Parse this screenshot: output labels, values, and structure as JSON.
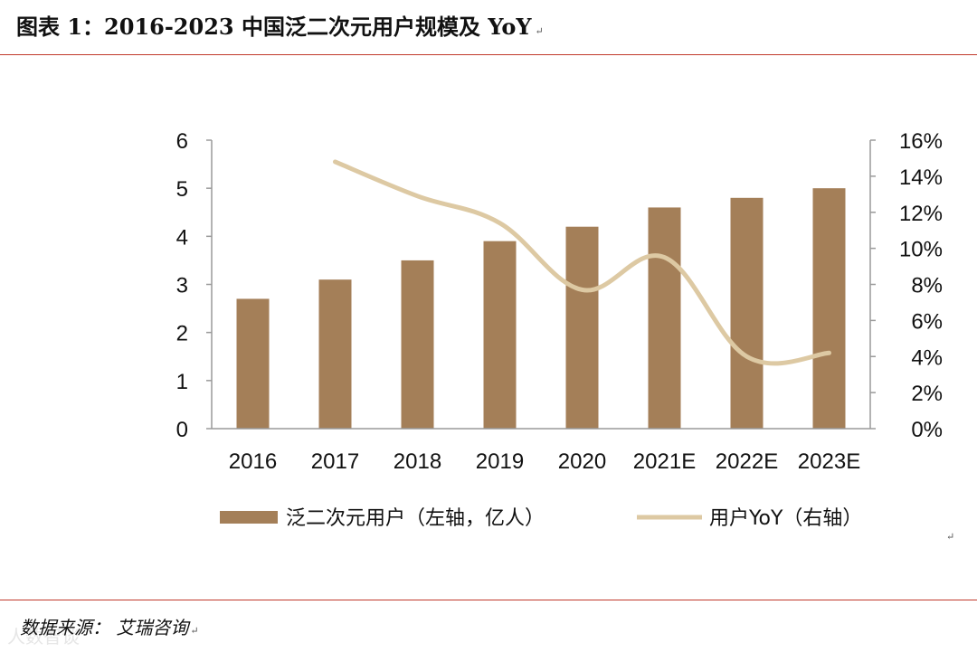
{
  "header": {
    "title": "图表 1：2016-2023  中国泛二次元用户规模及  YoY",
    "paragraph_mark": "↵"
  },
  "footer": {
    "source": "数据来源：  艾瑞咨询",
    "paragraph_mark": "↵",
    "watermark": "人数智谈"
  },
  "stray_mark": "↵",
  "colors": {
    "bar": "#a47f58",
    "line": "#ddc9a3",
    "rule": "#c0392b",
    "axis": "#9a9a9a"
  },
  "chart_data": {
    "type": "bar",
    "title": "2016-2023 中国泛二次元用户规模及 YoY",
    "categories": [
      "2016",
      "2017",
      "2018",
      "2019",
      "2020",
      "2021E",
      "2022E",
      "2023E"
    ],
    "series": [
      {
        "name": "泛二次元用户（左轴，亿人）",
        "type": "bar",
        "axis": "left",
        "values": [
          2.7,
          3.1,
          3.5,
          3.9,
          4.2,
          4.6,
          4.8,
          5.0
        ]
      },
      {
        "name": "用户YoY（右轴）",
        "type": "line",
        "axis": "right",
        "values": [
          null,
          14.8,
          12.9,
          11.4,
          7.7,
          9.5,
          4.0,
          4.2
        ]
      }
    ],
    "y_left": {
      "min": 0,
      "max": 6,
      "ticks": [
        "0",
        "1",
        "2",
        "3",
        "4",
        "5",
        "6"
      ]
    },
    "y_right": {
      "min": 0,
      "max": 16,
      "ticks": [
        "0%",
        "2%",
        "4%",
        "6%",
        "8%",
        "10%",
        "12%",
        "14%",
        "16%"
      ]
    },
    "legend": [
      "泛二次元用户（左轴，亿人）",
      "用户YoY（右轴）"
    ],
    "legend_position": "bottom",
    "grid": false
  }
}
